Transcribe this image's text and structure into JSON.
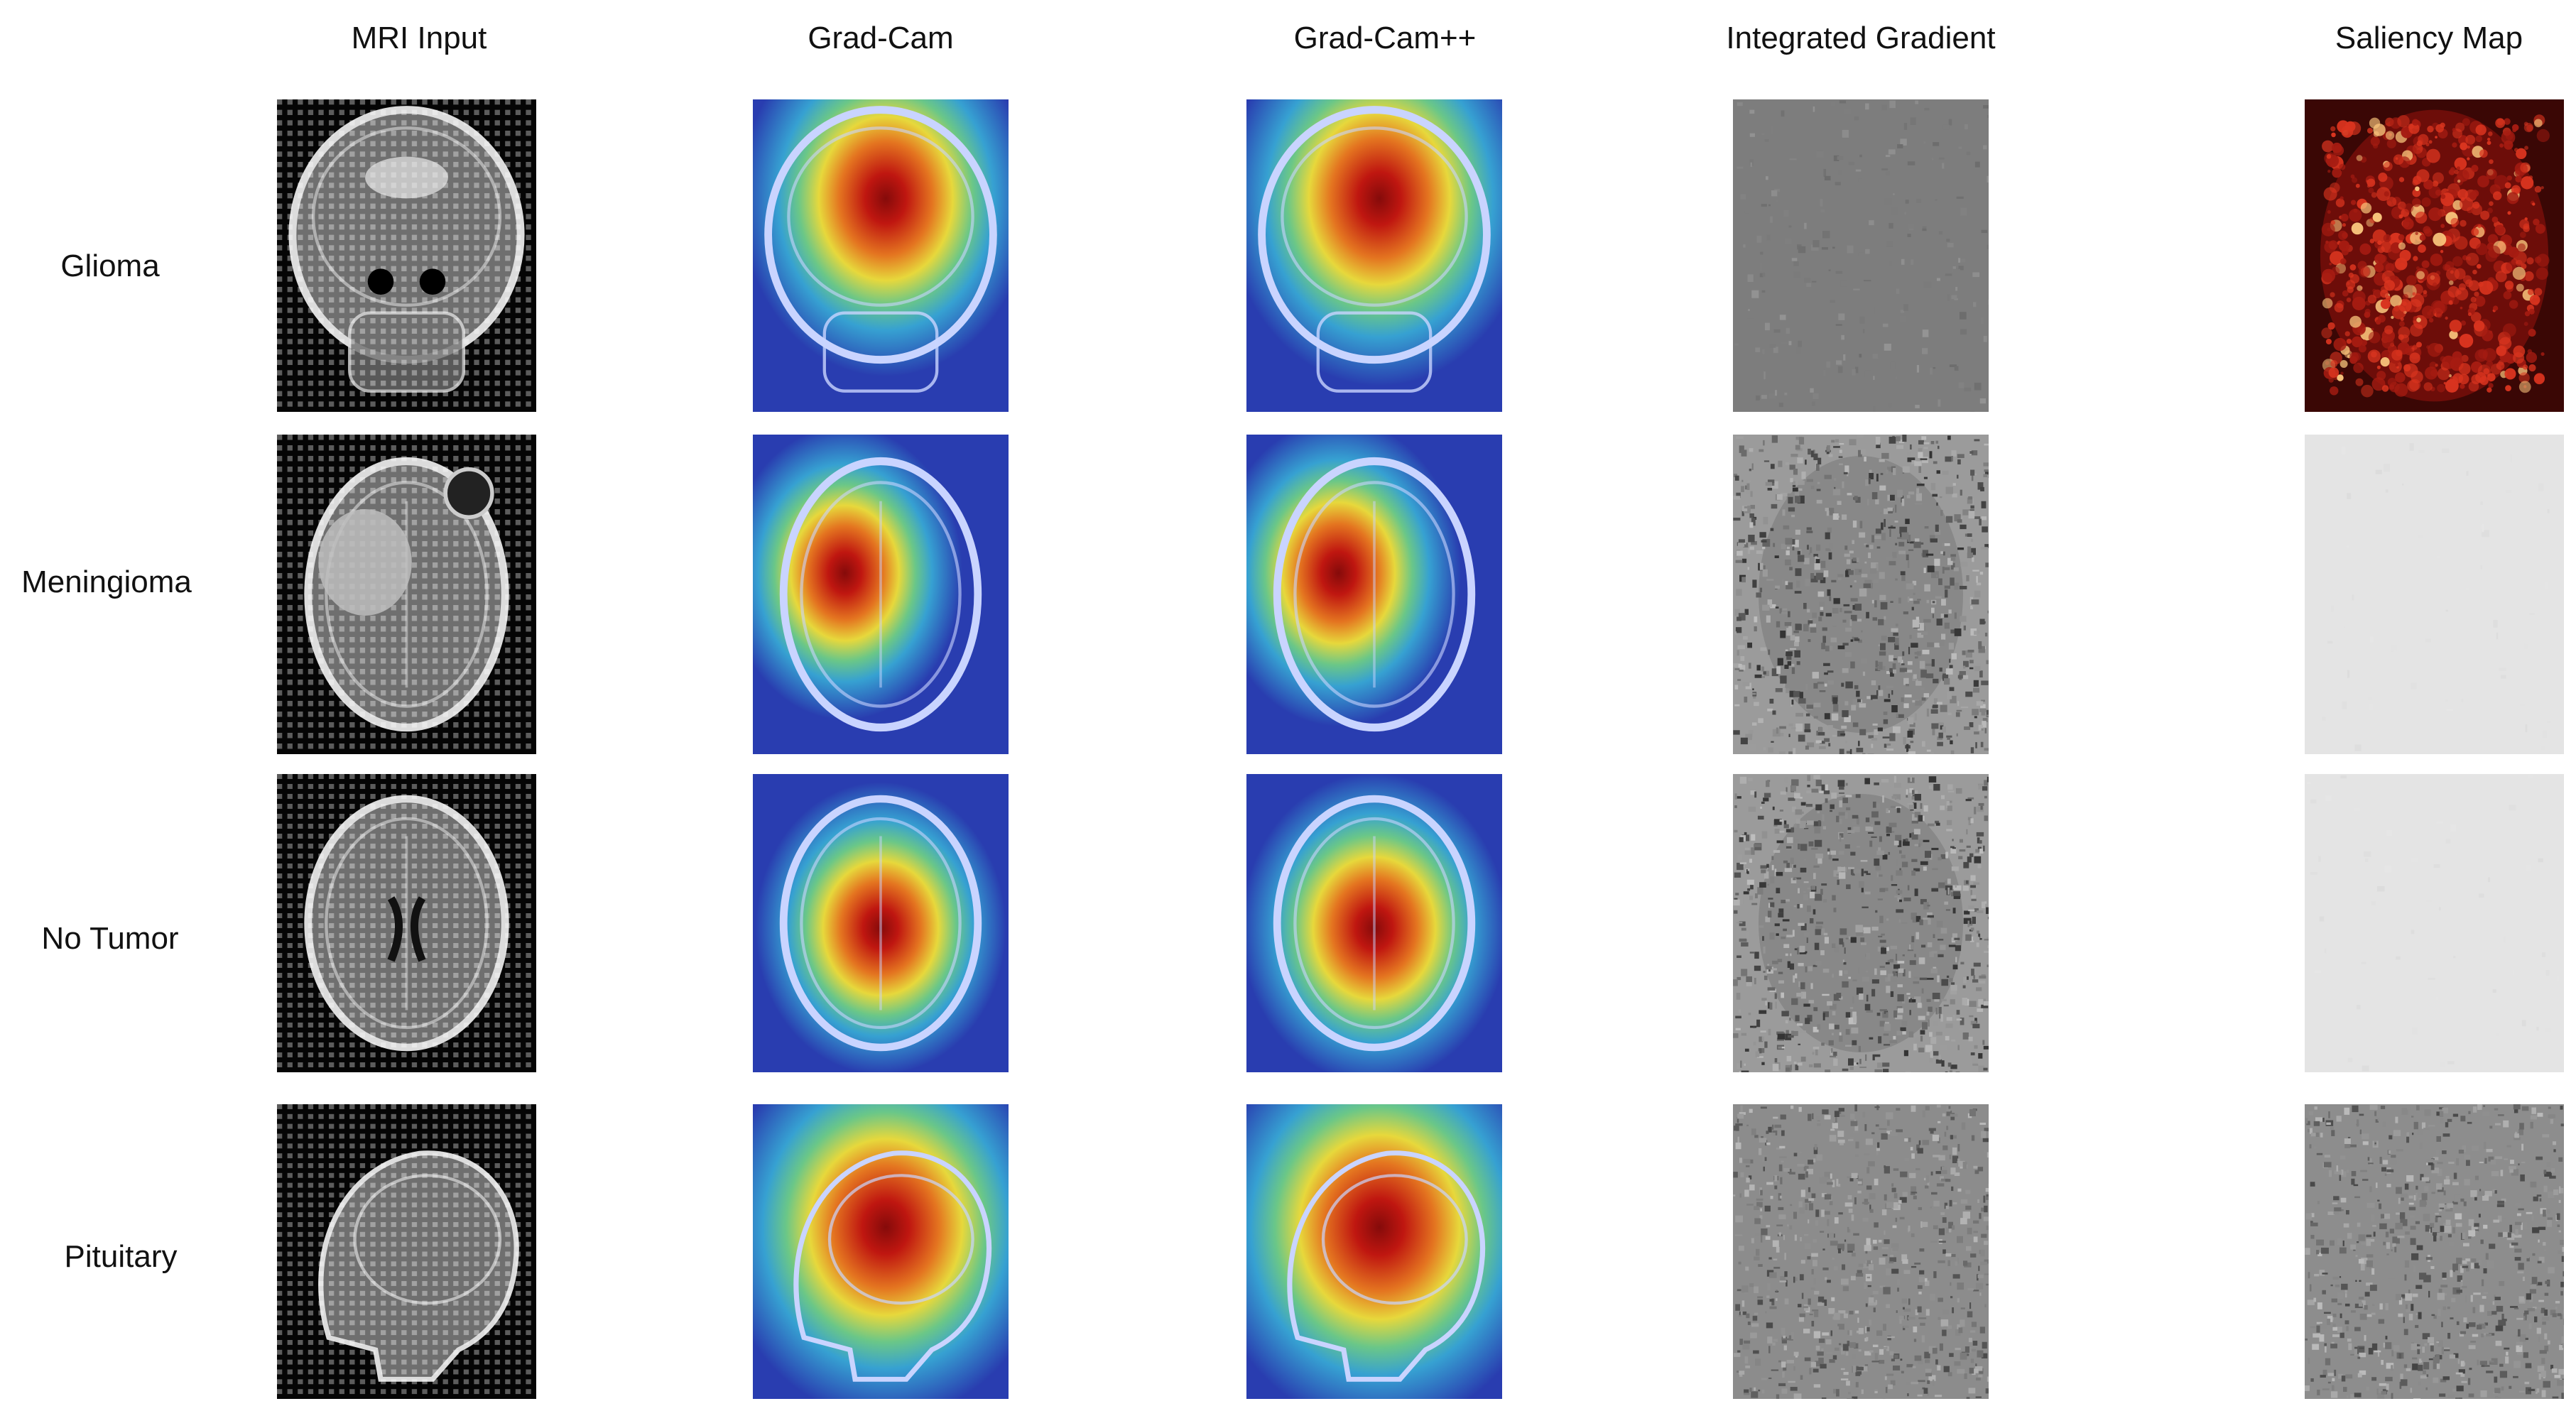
{
  "columns": [
    "MRI Input",
    "Grad-Cam",
    "Grad-Cam++",
    "Integrated Gradient",
    "Saliency Map"
  ],
  "rows": [
    "Glioma",
    "Meningioma",
    "No Tumor",
    "Pituitary"
  ],
  "grid": [
    [
      {
        "kind": "mri",
        "view": "coronal",
        "icon": "mri-coronal-scan"
      },
      {
        "kind": "gradcam",
        "view": "coronal",
        "hotspot": "upper-center",
        "icon": "heatmap-overlay"
      },
      {
        "kind": "gradcampp",
        "view": "coronal",
        "hotspot": "upper-center",
        "icon": "heatmap-overlay"
      },
      {
        "kind": "ig",
        "tone": "flat",
        "icon": "noise-map"
      },
      {
        "kind": "saliency",
        "tone": "red-dark",
        "icon": "saliency-map"
      }
    ],
    [
      {
        "kind": "mri",
        "view": "axial-tumor",
        "icon": "mri-axial-scan"
      },
      {
        "kind": "gradcam",
        "view": "axial-tumor",
        "hotspot": "left-mid",
        "icon": "heatmap-overlay"
      },
      {
        "kind": "gradcampp",
        "view": "axial-tumor",
        "hotspot": "left-mid",
        "icon": "heatmap-overlay"
      },
      {
        "kind": "ig",
        "tone": "textured",
        "icon": "noise-map"
      },
      {
        "kind": "saliency",
        "tone": "light",
        "icon": "saliency-map"
      }
    ],
    [
      {
        "kind": "mri",
        "view": "axial-normal",
        "icon": "mri-axial-scan"
      },
      {
        "kind": "gradcam",
        "view": "axial-normal",
        "hotspot": "center",
        "icon": "heatmap-overlay"
      },
      {
        "kind": "gradcampp",
        "view": "axial-normal",
        "hotspot": "center",
        "icon": "heatmap-overlay"
      },
      {
        "kind": "ig",
        "tone": "textured",
        "icon": "noise-map"
      },
      {
        "kind": "saliency",
        "tone": "light",
        "icon": "saliency-map"
      }
    ],
    [
      {
        "kind": "mri",
        "view": "sagittal",
        "icon": "mri-sagittal-scan"
      },
      {
        "kind": "gradcam",
        "view": "sagittal",
        "hotspot": "center-large",
        "icon": "heatmap-overlay"
      },
      {
        "kind": "gradcampp",
        "view": "sagittal",
        "hotspot": "center-large",
        "icon": "heatmap-overlay"
      },
      {
        "kind": "ig",
        "tone": "gray-noise",
        "icon": "noise-map"
      },
      {
        "kind": "saliency",
        "tone": "gray-noise",
        "icon": "saliency-map"
      }
    ]
  ],
  "colors": {
    "background": "#ffffff",
    "heat_red": "#c8160c",
    "heat_yellow": "#f2e23a",
    "heat_blue": "#2a3fb4",
    "saliency_red": "#7a0f0a",
    "ig_gray": "#7d7d7d",
    "light_gray": "#e4e4e4"
  }
}
